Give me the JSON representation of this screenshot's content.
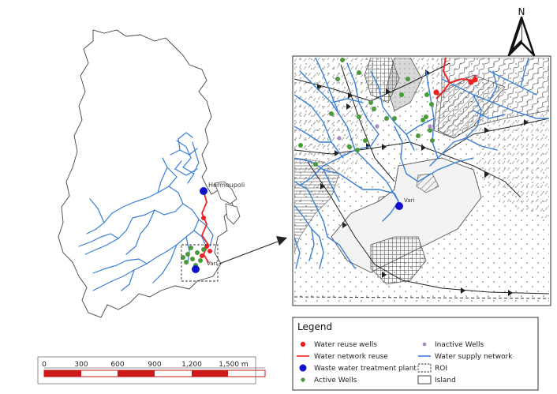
{
  "north_arrow": {
    "label": "N"
  },
  "places": {
    "hermoupoli": "Hermoupoli",
    "vari_main": "Vari",
    "vari_inset": "Vari"
  },
  "legend": {
    "title": "Legend",
    "items": [
      {
        "label": "Water reuse wells",
        "symbol": "red-dot",
        "color": "#ee2222"
      },
      {
        "label": "Inactive Wells",
        "symbol": "purple-dot",
        "color": "#a98bbf"
      },
      {
        "label": "Water network reuse",
        "symbol": "red-line",
        "color": "#ee2222"
      },
      {
        "label": "Water supply network",
        "symbol": "blue-line",
        "color": "#3a7fd5"
      },
      {
        "label": "Waste water treatment plant",
        "symbol": "blue-dot",
        "color": "#1010cc"
      },
      {
        "label": "ROI",
        "symbol": "dashed-box",
        "color": "#333333"
      },
      {
        "label": "Active Wells",
        "symbol": "green-dot",
        "color": "#4a9a3a"
      },
      {
        "label": "Island",
        "symbol": "box",
        "color": "#333333"
      }
    ]
  },
  "scalebar": {
    "ticks": [
      "0",
      "300",
      "600",
      "900",
      "1,200",
      "1,500 m"
    ]
  },
  "colors": {
    "supply": "#3a7fd5",
    "reuse": "#ee2222",
    "active_well": "#4a9a3a",
    "inactive_well": "#a98bbf",
    "wwtp": "#1010cc"
  }
}
